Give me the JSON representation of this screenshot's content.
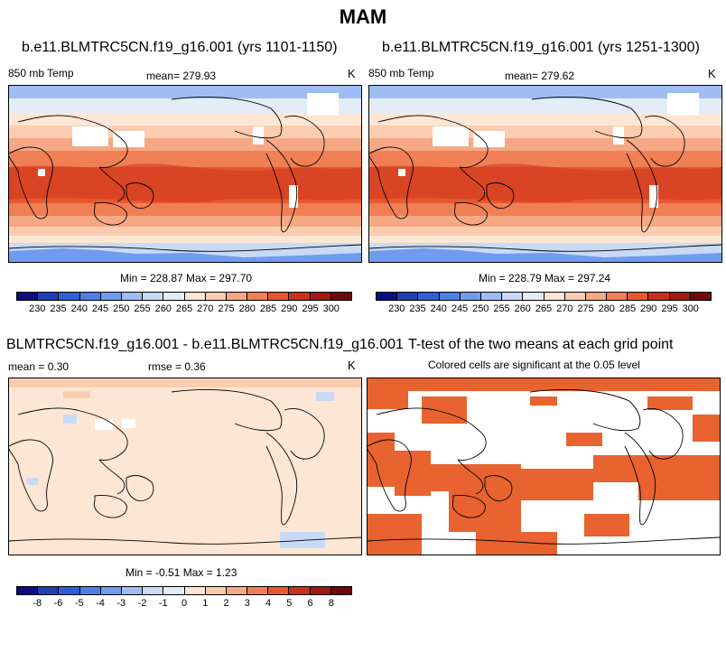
{
  "season": "MAM",
  "panels": {
    "top_left": {
      "title": "b.e11.BLMTRC5CN.f19_g16.001 (yrs 1101-1150)",
      "variable": "850 mb Temp",
      "mean_label": "mean= 279.93",
      "unit": "K",
      "minmax": "Min = 228.87 Max = 297.70"
    },
    "top_right": {
      "title": "b.e11.BLMTRC5CN.f19_g16.001 (yrs 1251-1300)",
      "variable": "850 mb Temp",
      "mean_label": "mean= 279.62",
      "unit": "K",
      "minmax": "Min = 228.79 Max = 297.24"
    },
    "bottom_left": {
      "title": "BLMTRC5CN.f19_g16.001 - b.e11.BLMTRC5CN.f19_g16.001",
      "mean_label": "mean =   0.30",
      "rmse_label": "rmse =   0.36",
      "unit": "K",
      "minmax": "Min =  -0.51 Max =   1.23"
    },
    "bottom_right": {
      "title": "T-test of the two means at each grid point",
      "subtitle": "Colored cells are significant at the 0.05 level"
    }
  },
  "colorbar_abs": {
    "labels": [
      "230",
      "235",
      "240",
      "245",
      "250",
      "255",
      "260",
      "265",
      "270",
      "275",
      "280",
      "285",
      "290",
      "295",
      "300"
    ],
    "colors": [
      "#0b0c84",
      "#1f3fb4",
      "#2f5fd6",
      "#4a7fe6",
      "#6f9cf0",
      "#9fbdf3",
      "#c8daf6",
      "#e4ecf8",
      "#fde6d3",
      "#fbcdb0",
      "#f6a884",
      "#f07f55",
      "#e8582f",
      "#c8301a",
      "#a01810",
      "#700808"
    ]
  },
  "colorbar_diff": {
    "labels": [
      "-8",
      "-6",
      "-5",
      "-4",
      "-3",
      "-2",
      "-1",
      "0",
      "1",
      "2",
      "3",
      "4",
      "5",
      "6",
      "8"
    ],
    "colors": [
      "#0b0c84",
      "#1f3fb4",
      "#2f5fd6",
      "#4a7fe6",
      "#6f9cf0",
      "#9fbdf3",
      "#c8daf6",
      "#e4ecf8",
      "#fde6d3",
      "#fbcdb0",
      "#f6a884",
      "#f07f55",
      "#e8582f",
      "#c8301a",
      "#a01810",
      "#700808"
    ]
  },
  "colors": {
    "diff_fill": "#fde6d3",
    "ttest_fill": "#e8632f",
    "coast": "#000000"
  }
}
